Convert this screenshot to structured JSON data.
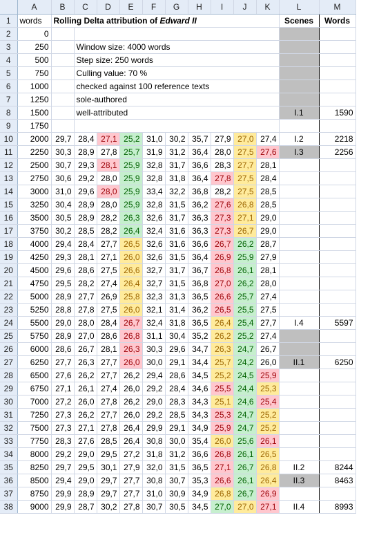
{
  "columns": [
    "A",
    "B",
    "C",
    "D",
    "E",
    "F",
    "G",
    "H",
    "I",
    "J",
    "K",
    "L",
    "M"
  ],
  "row1": {
    "a": "words",
    "title_prefix": "Rolling Delta attribution of ",
    "title_work": "Edward II",
    "scenes_header": "Scenes",
    "words_header": "Words"
  },
  "notes": {
    "window": "Window size: 4000 words",
    "step": "Step size: 250 words",
    "culling": "Culling value: 70 %",
    "checked": "checked against 100 reference texts",
    "sole": "sole-authored",
    "well": "well-attributed"
  },
  "colors": {
    "red_fill": "#ffc7ce",
    "red_text": "#9c0006",
    "green_fill": "#c6efce",
    "green_text": "#006100",
    "yellow_fill": "#ffeb9c",
    "yellow_text": "#9c6500",
    "scene_gray": "#bfbfbf"
  },
  "rows": [
    {
      "n": "2",
      "a": "0"
    },
    {
      "n": "3",
      "a": "250"
    },
    {
      "n": "4",
      "a": "500"
    },
    {
      "n": "5",
      "a": "750"
    },
    {
      "n": "6",
      "a": "1000"
    },
    {
      "n": "7",
      "a": "1250"
    },
    {
      "n": "8",
      "a": "1500",
      "l": "I.1",
      "m": "1590"
    },
    {
      "n": "9",
      "a": "1750"
    },
    {
      "n": "10",
      "a": "2000",
      "v": [
        "29,7",
        "28,4",
        "27,1",
        "25,2",
        "31,0",
        "30,2",
        "35,7",
        "27,9",
        "27,0",
        "27,4"
      ],
      "c": [
        "",
        "",
        "R",
        "G",
        "",
        "",
        "",
        "",
        "Y",
        ""
      ],
      "l": "I.2",
      "m": "2218"
    },
    {
      "n": "11",
      "a": "2250",
      "v": [
        "30,3",
        "28,9",
        "27,8",
        "25,7",
        "31,9",
        "31,2",
        "36,4",
        "28,0",
        "27,5",
        "27,6"
      ],
      "c": [
        "",
        "",
        "",
        "G",
        "",
        "",
        "",
        "",
        "Y",
        "R"
      ],
      "l": "I.3",
      "m": "2256"
    },
    {
      "n": "12",
      "a": "2500",
      "v": [
        "30,7",
        "29,3",
        "28,1",
        "25,9",
        "32,8",
        "31,7",
        "36,6",
        "28,3",
        "27,7",
        "28,1"
      ],
      "c": [
        "",
        "",
        "R",
        "G",
        "",
        "",
        "",
        "",
        "Y",
        ""
      ]
    },
    {
      "n": "13",
      "a": "2750",
      "v": [
        "30,6",
        "29,2",
        "28,0",
        "25,9",
        "32,8",
        "31,8",
        "36,4",
        "27,8",
        "27,5",
        "28,4"
      ],
      "c": [
        "",
        "",
        "",
        "G",
        "",
        "",
        "",
        "R",
        "Y",
        ""
      ]
    },
    {
      "n": "14",
      "a": "3000",
      "v": [
        "31,0",
        "29,6",
        "28,0",
        "25,9",
        "33,4",
        "32,2",
        "36,8",
        "28,2",
        "27,5",
        "28,5"
      ],
      "c": [
        "",
        "",
        "R",
        "G",
        "",
        "",
        "",
        "",
        "Y",
        ""
      ]
    },
    {
      "n": "15",
      "a": "3250",
      "v": [
        "30,4",
        "28,9",
        "28,0",
        "25,9",
        "32,8",
        "31,5",
        "36,2",
        "27,6",
        "26,8",
        "28,5"
      ],
      "c": [
        "",
        "",
        "",
        "G",
        "",
        "",
        "",
        "R",
        "Y",
        ""
      ]
    },
    {
      "n": "16",
      "a": "3500",
      "v": [
        "30,5",
        "28,9",
        "28,2",
        "26,3",
        "32,6",
        "31,7",
        "36,3",
        "27,3",
        "27,1",
        "29,0"
      ],
      "c": [
        "",
        "",
        "",
        "G",
        "",
        "",
        "",
        "R",
        "Y",
        ""
      ]
    },
    {
      "n": "17",
      "a": "3750",
      "v": [
        "30,2",
        "28,5",
        "28,2",
        "26,4",
        "32,4",
        "31,6",
        "36,3",
        "27,3",
        "26,7",
        "29,0"
      ],
      "c": [
        "",
        "",
        "",
        "G",
        "",
        "",
        "",
        "R",
        "Y",
        ""
      ]
    },
    {
      "n": "18",
      "a": "4000",
      "v": [
        "29,4",
        "28,4",
        "27,7",
        "26,5",
        "32,6",
        "31,6",
        "36,6",
        "26,7",
        "26,2",
        "28,7"
      ],
      "c": [
        "",
        "",
        "",
        "Y",
        "",
        "",
        "",
        "R",
        "G",
        ""
      ]
    },
    {
      "n": "19",
      "a": "4250",
      "v": [
        "29,3",
        "28,1",
        "27,1",
        "26,0",
        "32,6",
        "31,5",
        "36,4",
        "26,9",
        "25,9",
        "27,9"
      ],
      "c": [
        "",
        "",
        "",
        "Y",
        "",
        "",
        "",
        "R",
        "G",
        ""
      ]
    },
    {
      "n": "20",
      "a": "4500",
      "v": [
        "29,6",
        "28,6",
        "27,5",
        "26,6",
        "32,7",
        "31,7",
        "36,7",
        "26,8",
        "26,1",
        "28,1"
      ],
      "c": [
        "",
        "",
        "",
        "Y",
        "",
        "",
        "",
        "R",
        "G",
        ""
      ]
    },
    {
      "n": "21",
      "a": "4750",
      "v": [
        "29,5",
        "28,2",
        "27,4",
        "26,4",
        "32,7",
        "31,5",
        "36,8",
        "27,0",
        "26,2",
        "28,0"
      ],
      "c": [
        "",
        "",
        "",
        "Y",
        "",
        "",
        "",
        "R",
        "G",
        ""
      ]
    },
    {
      "n": "22",
      "a": "5000",
      "v": [
        "28,9",
        "27,7",
        "26,9",
        "25,8",
        "32,3",
        "31,3",
        "36,5",
        "26,6",
        "25,7",
        "27,4"
      ],
      "c": [
        "",
        "",
        "",
        "Y",
        "",
        "",
        "",
        "R",
        "G",
        ""
      ]
    },
    {
      "n": "23",
      "a": "5250",
      "v": [
        "28,8",
        "27,8",
        "27,5",
        "26,0",
        "32,1",
        "31,4",
        "36,2",
        "26,5",
        "25,5",
        "27,5"
      ],
      "c": [
        "",
        "",
        "",
        "Y",
        "",
        "",
        "",
        "R",
        "G",
        ""
      ]
    },
    {
      "n": "24",
      "a": "5500",
      "v": [
        "29,0",
        "28,0",
        "28,4",
        "26,7",
        "32,4",
        "31,8",
        "36,5",
        "26,4",
        "25,4",
        "27,7"
      ],
      "c": [
        "",
        "",
        "",
        "R",
        "",
        "",
        "",
        "Y",
        "G",
        ""
      ],
      "l": "I.4",
      "m": "5597"
    },
    {
      "n": "25",
      "a": "5750",
      "v": [
        "28,9",
        "27,0",
        "28,6",
        "26,8",
        "31,1",
        "30,4",
        "35,2",
        "26,2",
        "25,2",
        "27,4"
      ],
      "c": [
        "",
        "",
        "",
        "R",
        "",
        "",
        "",
        "Y",
        "G",
        ""
      ]
    },
    {
      "n": "26",
      "a": "6000",
      "v": [
        "28,6",
        "26,7",
        "28,1",
        "26,3",
        "30,3",
        "29,6",
        "34,7",
        "26,3",
        "24,7",
        "26,7"
      ],
      "c": [
        "",
        "",
        "",
        "R",
        "",
        "",
        "",
        "Y",
        "G",
        ""
      ]
    },
    {
      "n": "27",
      "a": "6250",
      "v": [
        "27,7",
        "26,3",
        "27,7",
        "26,0",
        "30,0",
        "29,1",
        "34,4",
        "25,7",
        "24,2",
        "26,0"
      ],
      "c": [
        "",
        "",
        "",
        "R",
        "",
        "",
        "",
        "Y",
        "G",
        ""
      ],
      "l": "II.1",
      "m": "6250"
    },
    {
      "n": "28",
      "a": "6500",
      "v": [
        "27,6",
        "26,2",
        "27,7",
        "26,2",
        "29,4",
        "28,6",
        "34,5",
        "25,2",
        "24,5",
        "25,9"
      ],
      "c": [
        "",
        "",
        "",
        "",
        "",
        "",
        "",
        "Y",
        "G",
        "R"
      ]
    },
    {
      "n": "29",
      "a": "6750",
      "v": [
        "27,1",
        "26,1",
        "27,4",
        "26,0",
        "29,2",
        "28,4",
        "34,6",
        "25,5",
        "24,4",
        "25,3"
      ],
      "c": [
        "",
        "",
        "",
        "",
        "",
        "",
        "",
        "R",
        "G",
        "Y"
      ]
    },
    {
      "n": "30",
      "a": "7000",
      "v": [
        "27,2",
        "26,0",
        "27,8",
        "26,2",
        "29,0",
        "28,3",
        "34,3",
        "25,1",
        "24,6",
        "25,4"
      ],
      "c": [
        "",
        "",
        "",
        "",
        "",
        "",
        "",
        "Y",
        "G",
        "R"
      ]
    },
    {
      "n": "31",
      "a": "7250",
      "v": [
        "27,3",
        "26,2",
        "27,7",
        "26,0",
        "29,2",
        "28,5",
        "34,3",
        "25,3",
        "24,7",
        "25,2"
      ],
      "c": [
        "",
        "",
        "",
        "",
        "",
        "",
        "",
        "R",
        "G",
        "Y"
      ]
    },
    {
      "n": "32",
      "a": "7500",
      "v": [
        "27,3",
        "27,1",
        "27,8",
        "26,4",
        "29,9",
        "29,1",
        "34,9",
        "25,9",
        "24,7",
        "25,2"
      ],
      "c": [
        "",
        "",
        "",
        "",
        "",
        "",
        "",
        "R",
        "G",
        "Y"
      ]
    },
    {
      "n": "33",
      "a": "7750",
      "v": [
        "28,3",
        "27,6",
        "28,5",
        "26,4",
        "30,8",
        "30,0",
        "35,4",
        "26,0",
        "25,6",
        "26,1"
      ],
      "c": [
        "",
        "",
        "",
        "",
        "",
        "",
        "",
        "Y",
        "G",
        "R"
      ]
    },
    {
      "n": "34",
      "a": "8000",
      "v": [
        "29,2",
        "29,0",
        "29,5",
        "27,2",
        "31,8",
        "31,2",
        "36,6",
        "26,8",
        "26,1",
        "26,5"
      ],
      "c": [
        "",
        "",
        "",
        "",
        "",
        "",
        "",
        "R",
        "G",
        "Y"
      ]
    },
    {
      "n": "35",
      "a": "8250",
      "v": [
        "29,7",
        "29,5",
        "30,1",
        "27,9",
        "32,0",
        "31,5",
        "36,5",
        "27,1",
        "26,7",
        "26,8"
      ],
      "c": [
        "",
        "",
        "",
        "",
        "",
        "",
        "",
        "R",
        "G",
        "Y"
      ],
      "l": "II.2",
      "m": "8244"
    },
    {
      "n": "36",
      "a": "8500",
      "v": [
        "29,4",
        "29,0",
        "29,7",
        "27,7",
        "30,8",
        "30,7",
        "35,3",
        "26,6",
        "26,1",
        "26,4"
      ],
      "c": [
        "",
        "",
        "",
        "",
        "",
        "",
        "",
        "R",
        "G",
        "Y"
      ],
      "l": "II.3",
      "m": "8463"
    },
    {
      "n": "37",
      "a": "8750",
      "v": [
        "29,9",
        "28,9",
        "29,7",
        "27,7",
        "31,0",
        "30,9",
        "34,9",
        "26,8",
        "26,7",
        "26,9"
      ],
      "c": [
        "",
        "",
        "",
        "",
        "",
        "",
        "",
        "Y",
        "G",
        "R"
      ]
    },
    {
      "n": "38",
      "a": "9000",
      "v": [
        "29,9",
        "28,7",
        "30,2",
        "27,8",
        "30,7",
        "30,5",
        "34,5",
        "27,0",
        "27,0",
        "27,1"
      ],
      "c": [
        "",
        "",
        "",
        "",
        "",
        "",
        "",
        "G",
        "Y",
        "R"
      ],
      "l": "II.4",
      "m": "8993"
    }
  ]
}
